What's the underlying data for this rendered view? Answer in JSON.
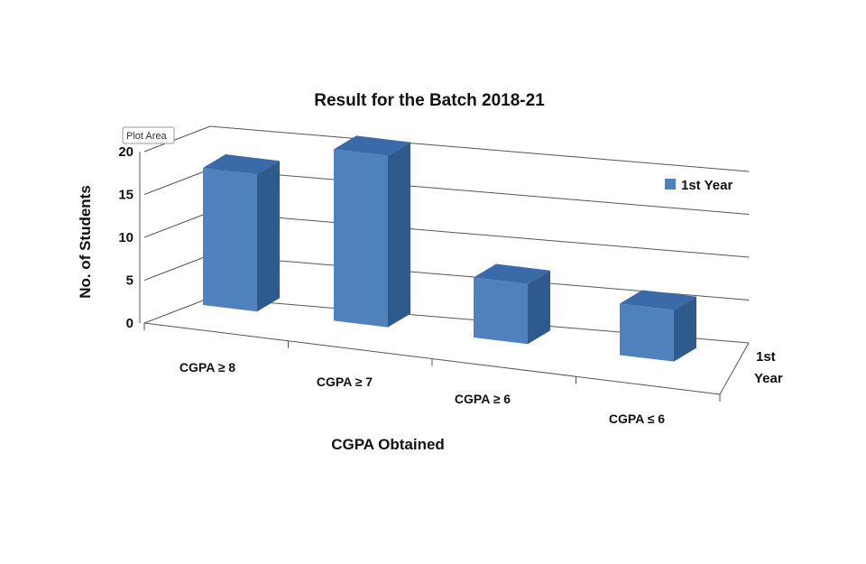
{
  "chart_data": {
    "type": "bar",
    "title": "Result for the Batch 2018-21",
    "xlabel": "CGPA Obtained",
    "ylabel": "No. of Students",
    "categories": [
      "CGPA ≥ 8",
      "CGPA ≥ 7",
      "CGPA ≥ 6",
      "CGPA ≤ 6"
    ],
    "series": [
      {
        "name": "1st Year",
        "values": [
          16,
          20,
          7,
          6
        ],
        "color": "#4F81BD"
      }
    ],
    "depth_label_lines": [
      "1st",
      "Year"
    ],
    "ylim": [
      0,
      20
    ],
    "yticks": [
      0,
      5,
      10,
      15,
      20
    ],
    "grid": true,
    "legend_position": "right",
    "three_d": true
  },
  "tooltip": {
    "label": "Plot Area"
  }
}
